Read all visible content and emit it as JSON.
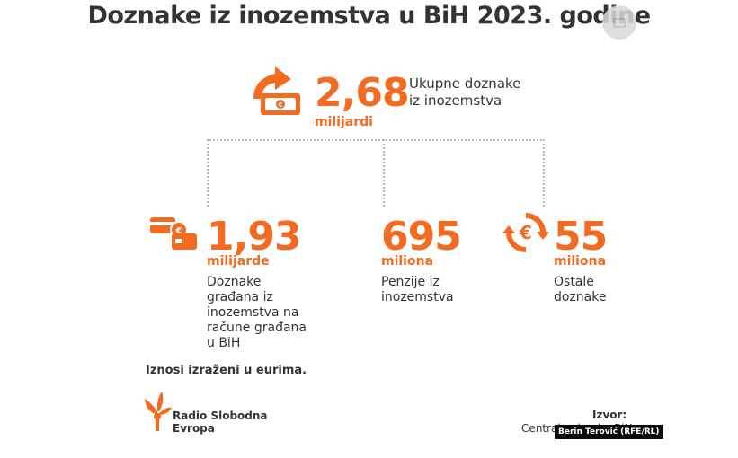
{
  "title": "Doznake iz inozemstva u BiH 2023. godine",
  "total": {
    "number": "2,68",
    "unit": "milijardi",
    "label_line1": "Ukupne doznake",
    "label_line2": "iz inozemstva"
  },
  "items": [
    {
      "number": "1,93",
      "unit": "milijarde",
      "lines": [
        "Doznake",
        "građana iz",
        "inozemstva na",
        "račune građana",
        "u BiH"
      ],
      "icon": "money-cards-icon"
    },
    {
      "number": "695",
      "unit": "miliona",
      "lines": [
        "Penzije iz",
        "inozemstva"
      ],
      "icon": ""
    },
    {
      "number": "55",
      "unit": "miliona",
      "lines": [
        "Ostale",
        "doznake"
      ],
      "icon": "euro-cycle-icon"
    }
  ],
  "note": "Iznosi izraženi u eurima.",
  "logo": {
    "line1": "Radio Slobodna",
    "line2": "Evropa"
  },
  "source": {
    "label": "Izvor:",
    "text": "Centralna banka BiH"
  },
  "credit": "Berin Terović (RFE/RL)",
  "colors": {
    "accent": "#f26b21",
    "text": "#333333",
    "dots": "#b5b5b5"
  }
}
